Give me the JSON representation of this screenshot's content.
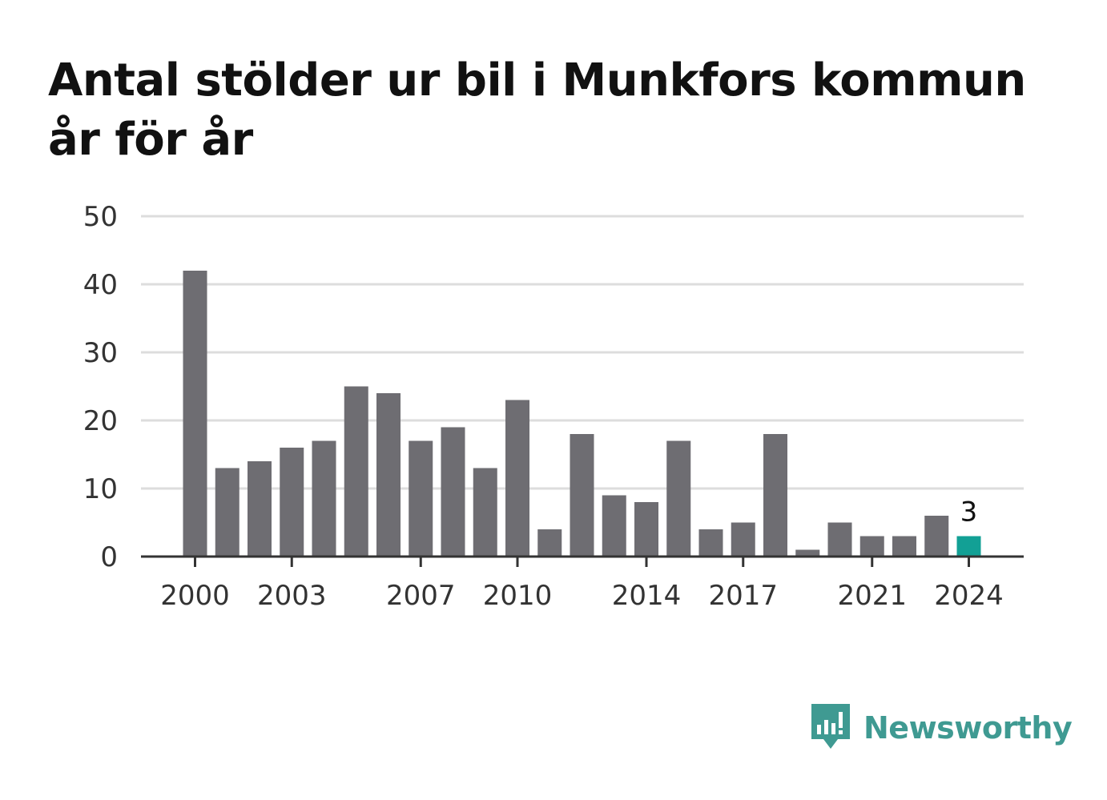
{
  "colors": {
    "bar": "#6e6d72",
    "highlight": "#12a095",
    "grid": "#dddddd",
    "axis": "#333333",
    "brand": "#3f9a92"
  },
  "brand": {
    "name": "Newsworthy",
    "icon": "newsworthy-logo-icon"
  },
  "chart_data": {
    "type": "bar",
    "title": "Antal stölder ur bil i Munkfors kommun år för år",
    "xlabel": "",
    "ylabel": "",
    "ylim": [
      0,
      50
    ],
    "y_ticks": [
      "0",
      "10",
      "20",
      "30",
      "40",
      "50"
    ],
    "grid": true,
    "categories": [
      "2000",
      "2001",
      "2002",
      "2003",
      "2004",
      "2005",
      "2006",
      "2007",
      "2008",
      "2009",
      "2010",
      "2011",
      "2012",
      "2013",
      "2014",
      "2015",
      "2016",
      "2017",
      "2018",
      "2019",
      "2020",
      "2021",
      "2022",
      "2023",
      "2024"
    ],
    "values": [
      42,
      13,
      14,
      16,
      17,
      25,
      24,
      17,
      19,
      13,
      23,
      4,
      18,
      9,
      8,
      17,
      4,
      5,
      18,
      1,
      5,
      3,
      3,
      6,
      3
    ],
    "x_tick_labels": [
      "2000",
      "2003",
      "2007",
      "2010",
      "2014",
      "2017",
      "2021",
      "2024"
    ],
    "highlight": {
      "category": "2024",
      "label": "3"
    }
  }
}
